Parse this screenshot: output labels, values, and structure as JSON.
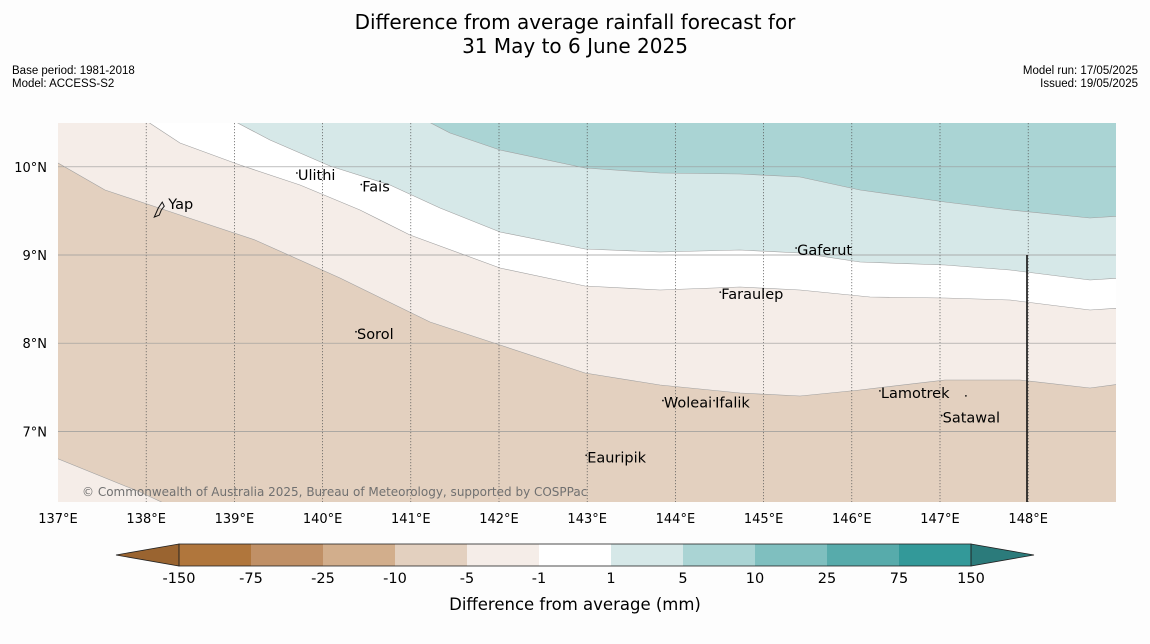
{
  "title": {
    "line1": "Difference from average rainfall forecast for",
    "line2": "31 May to 6 June 2025"
  },
  "info_left": {
    "base_period": "Base period: 1981-2018",
    "model": "Model: ACCESS-S2"
  },
  "info_right": {
    "model_run": "Model run: 17/05/2025",
    "issued": "Issued: 19/05/2025"
  },
  "copyright": "© Commonwealth of Australia 2025, Bureau of Meteorology, supported by COSPPac",
  "map": {
    "lon_range": [
      137,
      149
    ],
    "lat_range": [
      6.3,
      10.5
    ],
    "lon_ticks": [
      "137°E",
      "138°E",
      "139°E",
      "140°E",
      "141°E",
      "142°E",
      "143°E",
      "144°E",
      "145°E",
      "146°E",
      "147°E",
      "148°E"
    ],
    "lat_ticks": [
      "10°N",
      "9°N",
      "8°N",
      "7°N"
    ],
    "places": [
      {
        "name": "Yap",
        "lon": 138.25,
        "lat": 9.52
      },
      {
        "name": "Ulithi",
        "lon": 139.72,
        "lat": 9.85
      },
      {
        "name": "Fais",
        "lon": 140.45,
        "lat": 9.72
      },
      {
        "name": "Gaferut",
        "lon": 145.38,
        "lat": 9.0
      },
      {
        "name": "Faraulep",
        "lon": 144.52,
        "lat": 8.5
      },
      {
        "name": "Sorol",
        "lon": 140.39,
        "lat": 8.05
      },
      {
        "name": "Lamotrek",
        "lon": 146.33,
        "lat": 7.38
      },
      {
        "name": "Woleai",
        "lon": 143.87,
        "lat": 7.27
      },
      {
        "name": "Ifalik",
        "lon": 144.45,
        "lat": 7.27
      },
      {
        "name": "Satawal",
        "lon": 147.03,
        "lat": 7.1
      },
      {
        "name": "Eauripik",
        "lon": 143.0,
        "lat": 6.65
      }
    ]
  },
  "colorbar": {
    "labels": [
      "-150",
      "-75",
      "-25",
      "-10",
      "-5",
      "-1",
      "1",
      "5",
      "10",
      "25",
      "75",
      "150"
    ],
    "colors": [
      "#b0763c",
      "#c09066",
      "#d2ae8c",
      "#e3d0bf",
      "#f5ede8",
      "#ffffff",
      "#d6e8e8",
      "#aad4d4",
      "#7fbfbf",
      "#57abab",
      "#339999",
      "#2b7b7b"
    ],
    "extend_low_color": "#9a6430",
    "extend_high_color": "#2b7b7b",
    "label": "Difference from average (mm)"
  }
}
